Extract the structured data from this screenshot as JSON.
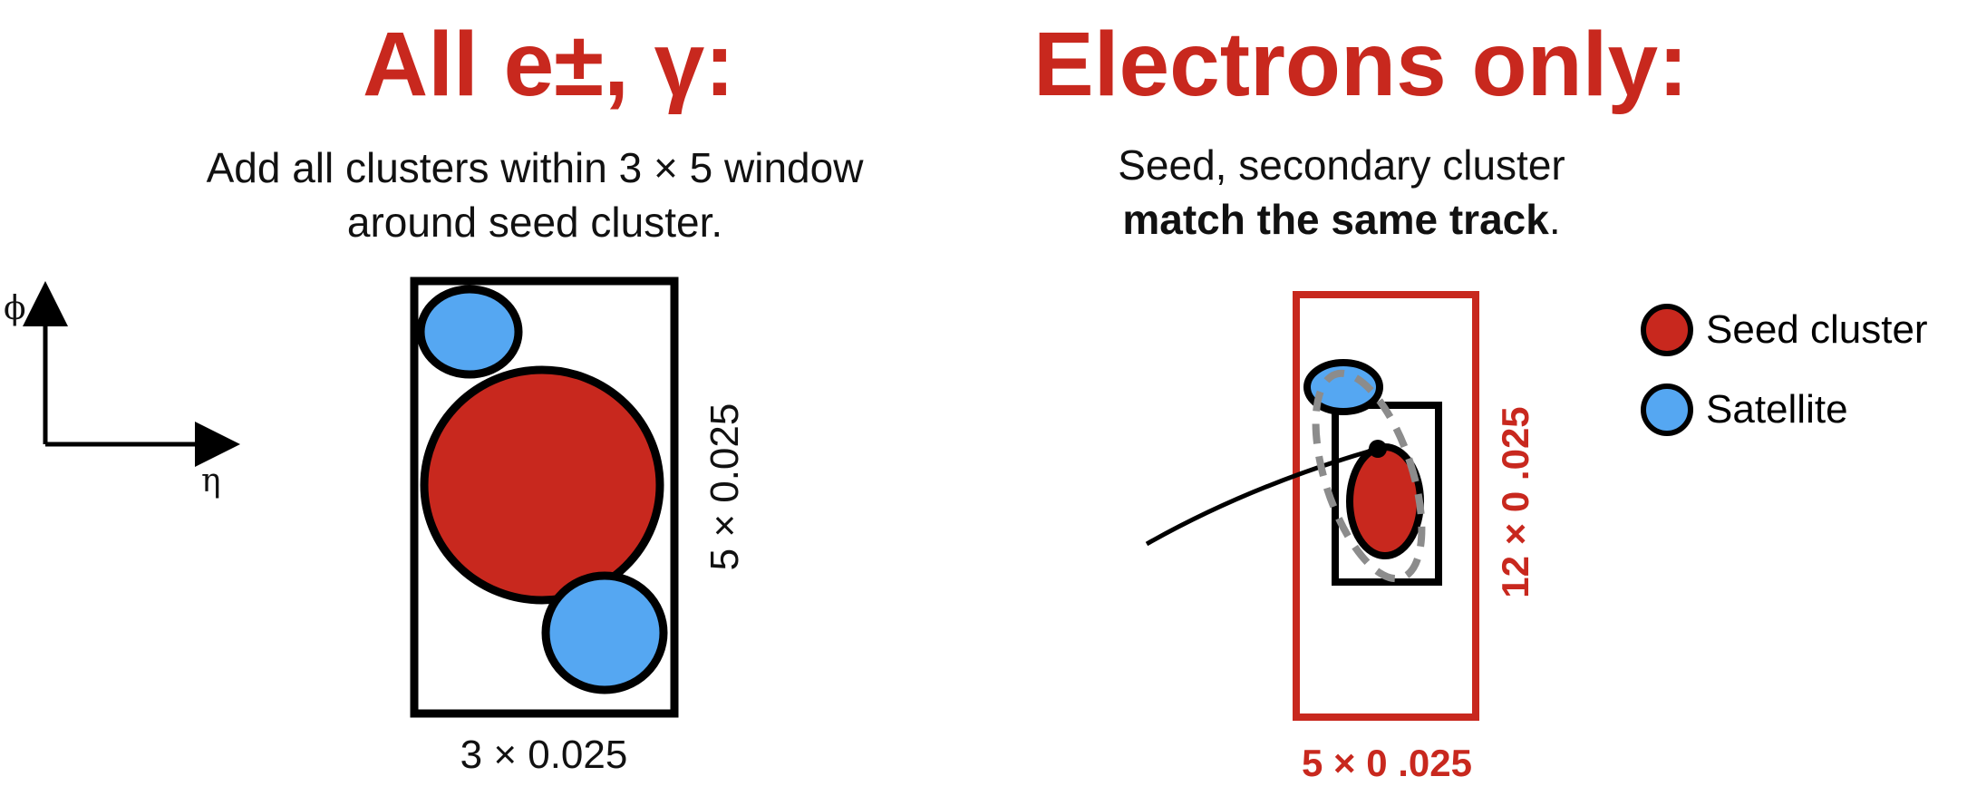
{
  "colors": {
    "red": "#c8281e",
    "blue": "#55a7f2",
    "gray_dashed": "#8c8c8c",
    "black": "#000000"
  },
  "left_panel": {
    "title": "All e±, γ:",
    "subtitle_line1": "Add all clusters within 3 × 5 window",
    "subtitle_line2": "around seed cluster.",
    "dim_vertical": "5 × 0.025",
    "dim_horizontal": "3 × 0.025"
  },
  "right_panel": {
    "title": "Electrons only:",
    "subtitle_line1": "Seed, secondary cluster",
    "subtitle_bold": "match the same track",
    "subtitle_suffix": ".",
    "dim_vertical": "12 × 0 .025",
    "dim_horizontal": "5 × 0 .025"
  },
  "axes": {
    "y_label": "ϕ",
    "x_label": "η"
  },
  "legend": [
    {
      "label": "Seed cluster",
      "color": "#c8281e"
    },
    {
      "label": "Satellite",
      "color": "#55a7f2"
    }
  ]
}
